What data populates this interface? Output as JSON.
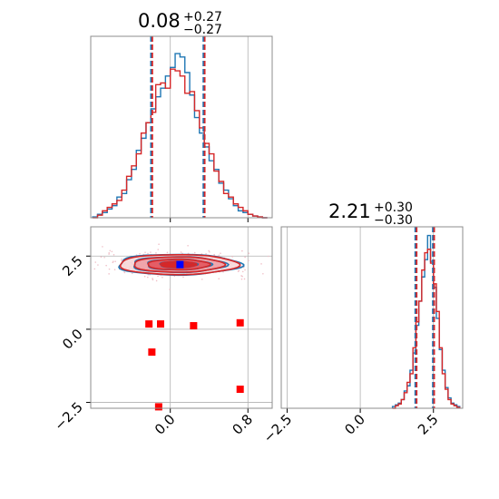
{
  "colors": {
    "blue": "#1f77b4",
    "red": "#d62728",
    "marker_red": "#ff0000",
    "marker_blue": "#0000ff",
    "grid": "#b0b0b0",
    "scatter": "#f0c0c8"
  },
  "chart_data": [
    {
      "type": "histogram",
      "panel": "marginal-param-1",
      "title": {
        "value": "0.08",
        "plus": "+0.27",
        "minus": "−0.27"
      },
      "xlim": [
        -0.82,
        1.05
      ],
      "ylim": [
        0,
        1.05
      ],
      "grid": true,
      "x_ticks": [
        0.0,
        0.8
      ],
      "quantiles": [
        -0.19,
        0.08,
        0.35
      ],
      "quantile_lines": [
        -0.19,
        0.35
      ],
      "bin_edges": [
        -0.8,
        -0.75,
        -0.7,
        -0.65,
        -0.6,
        -0.55,
        -0.5,
        -0.45,
        -0.4,
        -0.35,
        -0.3,
        -0.25,
        -0.2,
        -0.15,
        -0.1,
        -0.05,
        0.0,
        0.05,
        0.1,
        0.15,
        0.2,
        0.25,
        0.3,
        0.35,
        0.4,
        0.45,
        0.5,
        0.55,
        0.6,
        0.65,
        0.7,
        0.75,
        0.8,
        0.85,
        0.9,
        0.95,
        1.0
      ],
      "series": [
        {
          "color": "blue",
          "values": [
            0.005,
            0.02,
            0.03,
            0.05,
            0.07,
            0.12,
            0.14,
            0.22,
            0.28,
            0.39,
            0.46,
            0.55,
            0.63,
            0.7,
            0.75,
            0.82,
            0.87,
            0.95,
            0.93,
            0.84,
            0.71,
            0.58,
            0.49,
            0.41,
            0.33,
            0.28,
            0.2,
            0.16,
            0.11,
            0.07,
            0.04,
            0.03,
            0.02,
            0.01,
            0.005,
            0.0
          ]
        },
        {
          "color": "red",
          "values": [
            0.0,
            0.015,
            0.04,
            0.06,
            0.08,
            0.1,
            0.16,
            0.24,
            0.3,
            0.37,
            0.49,
            0.55,
            0.61,
            0.77,
            0.78,
            0.75,
            0.86,
            0.85,
            0.82,
            0.72,
            0.73,
            0.62,
            0.52,
            0.43,
            0.37,
            0.27,
            0.21,
            0.14,
            0.12,
            0.08,
            0.06,
            0.04,
            0.02,
            0.01,
            0.005,
            0.0
          ]
        }
      ]
    },
    {
      "type": "scatter",
      "panel": "joint-param-1-param-2",
      "xlim": [
        -0.82,
        1.05
      ],
      "ylim": [
        -2.7,
        3.5
      ],
      "grid": true,
      "x_ticks": [
        0.0,
        0.8
      ],
      "y_ticks": [
        -2.5,
        0.0,
        2.5
      ],
      "density": {
        "center": [
          0.08,
          2.21
        ],
        "sigma": [
          0.27,
          0.15
        ]
      },
      "red_markers": [
        [
          -0.22,
          0.18
        ],
        [
          -0.1,
          0.18
        ],
        [
          0.24,
          0.12
        ],
        [
          0.72,
          0.22
        ],
        [
          -0.19,
          -0.78
        ],
        [
          0.72,
          -2.05
        ],
        [
          -0.12,
          -2.65
        ]
      ],
      "blue_marker": [
        0.1,
        2.21
      ]
    },
    {
      "type": "histogram",
      "panel": "marginal-param-2",
      "title": {
        "value": "2.21",
        "plus": "+0.30",
        "minus": "−0.30"
      },
      "xlim": [
        -2.7,
        3.5
      ],
      "ylim": [
        0,
        1.05
      ],
      "grid": true,
      "x_ticks": [
        -2.5,
        0.0,
        2.5
      ],
      "quantiles": [
        1.91,
        2.21,
        2.51
      ],
      "quantile_lines": [
        1.91,
        2.51
      ],
      "bin_edges": [
        1.1,
        1.2,
        1.3,
        1.4,
        1.5,
        1.6,
        1.7,
        1.8,
        1.9,
        2.0,
        2.1,
        2.2,
        2.3,
        2.4,
        2.5,
        2.6,
        2.7,
        2.8,
        2.9,
        3.0,
        3.1,
        3.2,
        3.3,
        3.4
      ],
      "series": [
        {
          "color": "blue",
          "values": [
            0.01,
            0.02,
            0.03,
            0.05,
            0.1,
            0.13,
            0.22,
            0.32,
            0.48,
            0.62,
            0.76,
            0.86,
            1.0,
            0.85,
            0.7,
            0.52,
            0.34,
            0.22,
            0.12,
            0.06,
            0.03,
            0.02,
            0.01
          ]
        },
        {
          "color": "red",
          "values": [
            0.0,
            0.015,
            0.025,
            0.05,
            0.09,
            0.15,
            0.2,
            0.35,
            0.5,
            0.62,
            0.8,
            0.9,
            0.92,
            0.84,
            0.72,
            0.56,
            0.35,
            0.2,
            0.11,
            0.05,
            0.025,
            0.015,
            0.005
          ]
        }
      ]
    }
  ]
}
